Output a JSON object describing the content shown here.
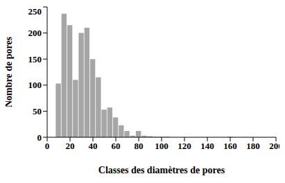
{
  "chart_data": {
    "type": "histogram",
    "x_label": "Classes des diamètres de pores",
    "y_label": "Nombre de pores",
    "bins": [
      7.5,
      12.5,
      17.5,
      22.5,
      27.5,
      32.5,
      37.5,
      42.5,
      47.5,
      52.5,
      57.5,
      62.5,
      67.5,
      72.5,
      77.5,
      82.5,
      87.5,
      92.5,
      97.5,
      102.5,
      107.5,
      112.5,
      117.5,
      122.5,
      127.5,
      132.5,
      137.5,
      142.5,
      147.5,
      152.5,
      157.5,
      162.5,
      167.5,
      172.5,
      177.5,
      182.5,
      187.5,
      192.5,
      197.5
    ],
    "values": [
      103,
      237,
      215,
      110,
      200,
      210,
      150,
      115,
      53,
      57,
      38,
      23,
      12,
      3,
      12,
      3,
      2,
      1,
      1,
      1,
      0,
      0,
      0,
      0,
      0,
      0,
      0,
      0,
      0,
      0,
      1,
      0,
      0,
      0,
      0,
      0,
      0,
      0
    ],
    "color": "#a6a6a6",
    "xlim": [
      0,
      200
    ],
    "xticks": [
      0,
      20,
      40,
      60,
      80,
      100,
      120,
      140,
      160,
      180,
      200
    ],
    "ylim": [
      0,
      250
    ],
    "yticks": [
      0,
      50,
      100,
      150,
      200,
      250
    ],
    "grid": false
  }
}
